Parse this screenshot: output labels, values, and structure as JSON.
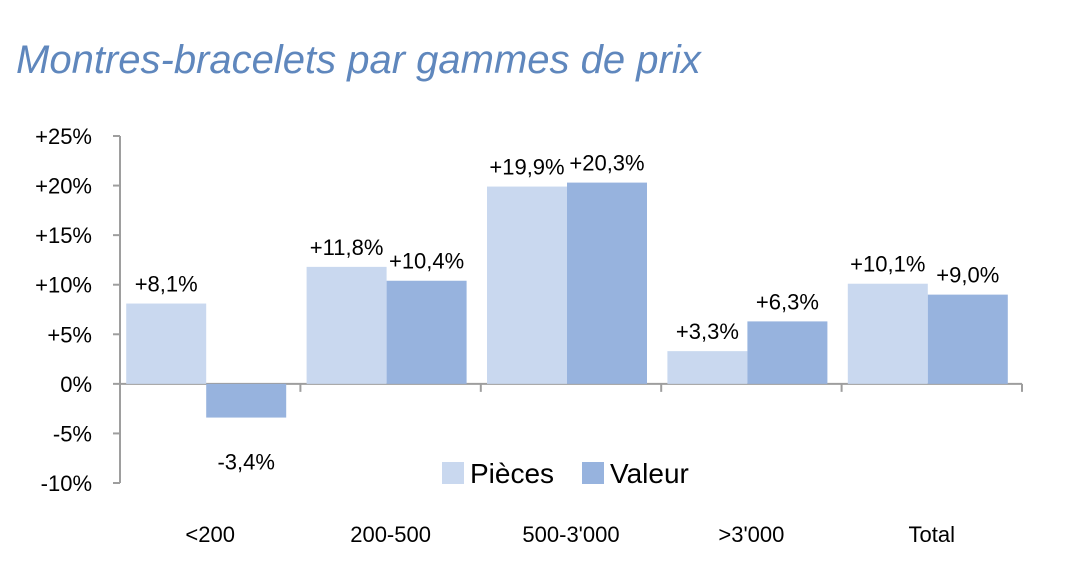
{
  "chart_data": {
    "type": "bar",
    "title": "Montres-bracelets par gammes de prix",
    "categories": [
      "<200",
      "200-500",
      "500-3'000",
      ">3'000",
      "Total"
    ],
    "series": [
      {
        "name": "Pièces",
        "color": "#c9d8ef",
        "values": [
          8.1,
          11.8,
          19.9,
          3.3,
          10.1
        ],
        "labels": [
          "+8,1%",
          "+11,8%",
          "+19,9%",
          "+3,3%",
          "+10,1%"
        ]
      },
      {
        "name": "Valeur",
        "color": "#97b3de",
        "values": [
          -3.4,
          10.4,
          20.3,
          6.3,
          9.0
        ],
        "labels": [
          "-3,4%",
          "+10,4%",
          "+20,3%",
          "+6,3%",
          "+9,0%"
        ]
      }
    ],
    "yticks": [
      25,
      20,
      15,
      10,
      5,
      0,
      -5,
      -10
    ],
    "ytick_labels": [
      "+25%",
      "+20%",
      "+15%",
      "+10%",
      "+5%",
      "0%",
      "-5%",
      "-10%"
    ],
    "ylim": [
      -10,
      25
    ],
    "legend_position": "bottom-center",
    "grid": false
  }
}
